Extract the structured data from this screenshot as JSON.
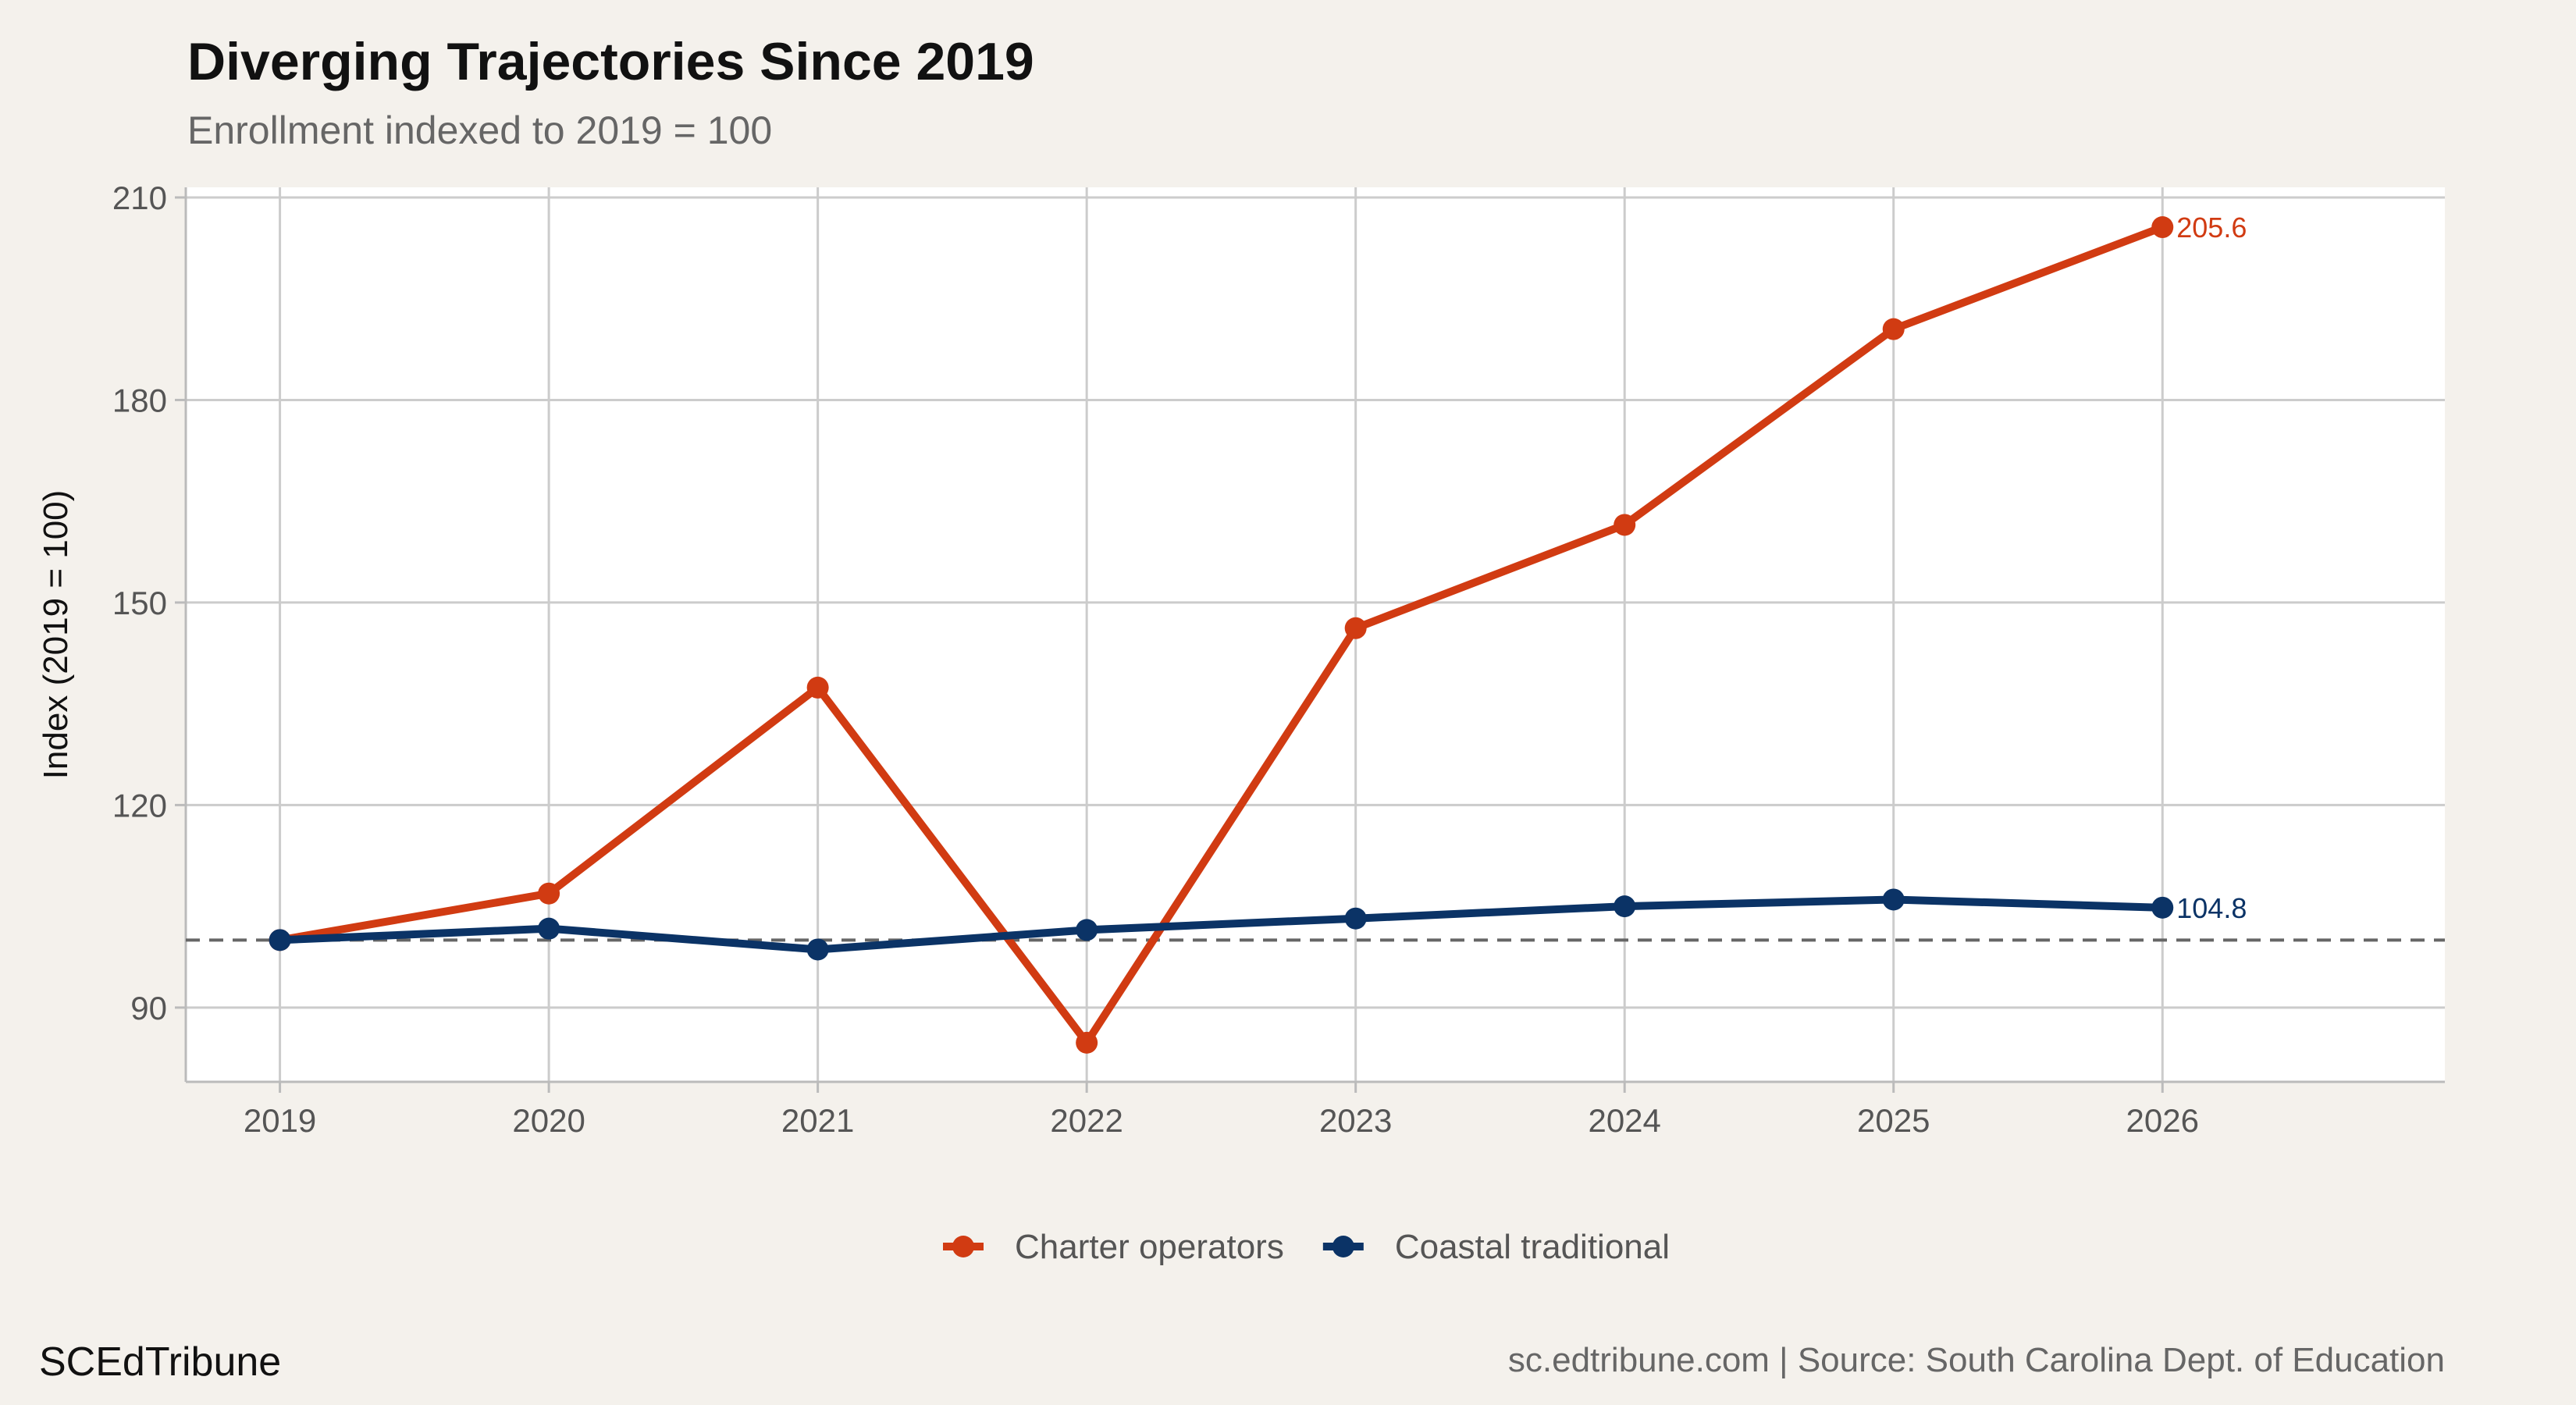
{
  "header": {
    "brand": "SCEdTribune",
    "source_note": "sc.edtribune.com | Source: South Carolina Dept. of Education"
  },
  "chart_data": {
    "type": "line",
    "title": "Diverging Trajectories Since 2019",
    "subtitle": "Enrollment indexed to 2019 = 100",
    "xlabel": "",
    "ylabel": "Index (2019 = 100)",
    "x": [
      2019,
      2020,
      2021,
      2022,
      2023,
      2024,
      2025,
      2026
    ],
    "xlim": [
      2018.65,
      2027.05
    ],
    "ylim": [
      79,
      211.5
    ],
    "yticks": [
      90,
      120,
      150,
      180,
      210
    ],
    "grid": true,
    "reference_line": 100,
    "legend_position": "bottom",
    "series": [
      {
        "name": "Charter operators",
        "color": "#d13b12",
        "values": [
          100,
          106.9,
          137.4,
          84.8,
          146.2,
          161.5,
          190.5,
          205.6
        ],
        "end_label": "205.6"
      },
      {
        "name": "Coastal traditional",
        "color": "#0b3366",
        "values": [
          100,
          101.7,
          98.6,
          101.5,
          103.2,
          105,
          106,
          104.8
        ],
        "end_label": "104.8"
      }
    ]
  }
}
